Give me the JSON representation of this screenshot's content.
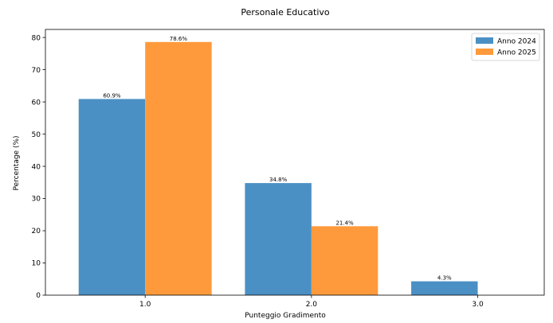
{
  "chart_data": {
    "type": "bar",
    "title": "Personale Educativo",
    "xlabel": "Punteggio Gradimento",
    "ylabel": "Percentage (%)",
    "categories": [
      "1.0",
      "2.0",
      "3.0"
    ],
    "series": [
      {
        "name": "Anno 2024",
        "color": "#4a90c4",
        "values": [
          60.9,
          34.8,
          4.3
        ],
        "labels": [
          "60.9%",
          "34.8%",
          "4.3%"
        ]
      },
      {
        "name": "Anno 2025",
        "color": "#ff9a3c",
        "values": [
          78.6,
          21.4,
          null
        ],
        "labels": [
          "78.6%",
          "21.4%",
          null
        ]
      }
    ],
    "ylim": [
      0,
      82.5
    ],
    "yticks": [
      0,
      10,
      20,
      30,
      40,
      50,
      60,
      70,
      80
    ],
    "xlim": [
      0.4,
      3.4
    ],
    "grid": false,
    "legend_position": "top-right"
  }
}
